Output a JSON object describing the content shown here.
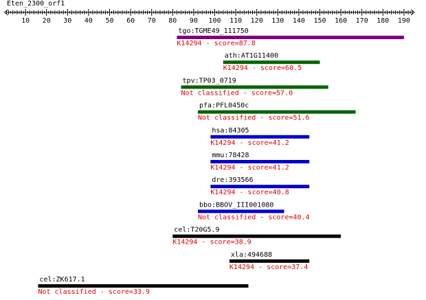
{
  "query_name": "Eten_2300_orf1",
  "ruler": {
    "min": 0,
    "max": 195,
    "major_ticks": [
      10,
      20,
      30,
      40,
      50,
      60,
      70,
      80,
      90,
      100,
      110,
      120,
      130,
      140,
      150,
      160,
      170,
      180,
      190
    ]
  },
  "hits": [
    {
      "name": "tgo:TGME49_111750",
      "start": 82,
      "end": 190,
      "color": "#800080",
      "label": "K14294 - score=87.8"
    },
    {
      "name": "ath:AT1G11400",
      "start": 104,
      "end": 150,
      "color": "#006400",
      "label": "K14294 - score=60.5"
    },
    {
      "name": "tpv:TP03_0719",
      "start": 84,
      "end": 154,
      "color": "#006400",
      "label": "Not classified - score=57.0"
    },
    {
      "name": "pfa:PFL0450c",
      "start": 92,
      "end": 167,
      "color": "#006400",
      "label": "Not classified - score=51.6"
    },
    {
      "name": "hsa:84305",
      "start": 98,
      "end": 145,
      "color": "#0000cd",
      "label": "K14294 - score=41.2"
    },
    {
      "name": "mmu:78428",
      "start": 98,
      "end": 145,
      "color": "#0000cd",
      "label": "K14294 - score=41.2"
    },
    {
      "name": "dre:393566",
      "start": 98,
      "end": 145,
      "color": "#0000cd",
      "label": "K14294 - score=40.8"
    },
    {
      "name": "bbo:BBOV_III001080",
      "start": 92,
      "end": 133,
      "color": "#0000cd",
      "label": "Not classified - score=40.4"
    },
    {
      "name": "cel:T20G5.9",
      "start": 80,
      "end": 160,
      "color": "#000000",
      "label": "K14294 - score=38.9"
    },
    {
      "name": "xla:494688",
      "start": 107,
      "end": 145,
      "color": "#000000",
      "label": "K14294 - score=37.4"
    },
    {
      "name": "cel:ZK617.1",
      "start": 16,
      "end": 116,
      "color": "#000000",
      "label": "Not classified - score=33.9"
    }
  ]
}
